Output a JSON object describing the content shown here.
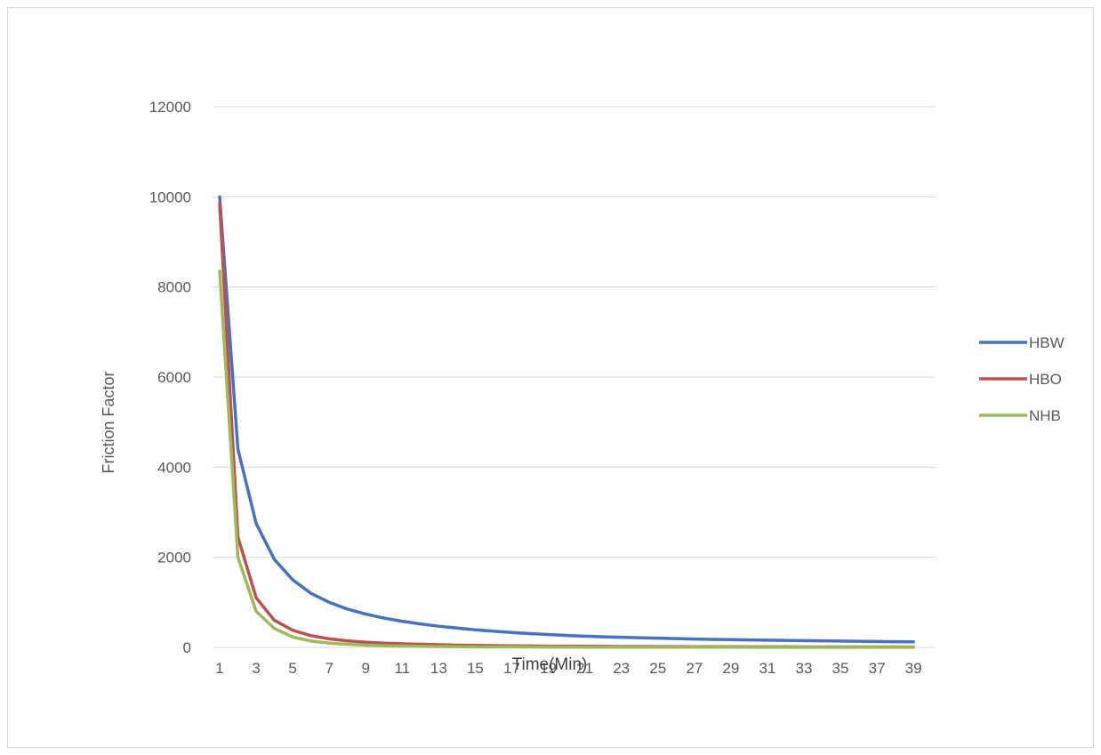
{
  "chart_data": {
    "type": "line",
    "title": "",
    "xlabel": "Time(Min)",
    "ylabel": "Friction Factor",
    "ylim": [
      0,
      12000
    ],
    "y_ticks": [
      0,
      2000,
      4000,
      6000,
      8000,
      10000,
      12000
    ],
    "y_tick_labels": [
      "0",
      "2000",
      "4000",
      "6000",
      "8000",
      "10000",
      "12000"
    ],
    "x": [
      1,
      2,
      3,
      4,
      5,
      6,
      7,
      8,
      9,
      10,
      11,
      12,
      13,
      14,
      15,
      16,
      17,
      18,
      19,
      20,
      21,
      22,
      23,
      24,
      25,
      26,
      27,
      28,
      29,
      30,
      31,
      32,
      33,
      34,
      35,
      36,
      37,
      38,
      39
    ],
    "x_tick_labels": [
      "1",
      "3",
      "5",
      "7",
      "9",
      "11",
      "13",
      "15",
      "17",
      "19",
      "21",
      "23",
      "25",
      "27",
      "29",
      "31",
      "33",
      "35",
      "37",
      "39"
    ],
    "grid": true,
    "legend_position": "right",
    "series": [
      {
        "name": "HBW",
        "color": "#4472c4",
        "values": [
          10000,
          4400,
          2750,
          1950,
          1500,
          1200,
          1000,
          850,
          740,
          650,
          580,
          520,
          470,
          430,
          390,
          360,
          330,
          305,
          285,
          265,
          250,
          235,
          225,
          215,
          205,
          195,
          185,
          178,
          172,
          165,
          160,
          155,
          150,
          145,
          140,
          135,
          130,
          127,
          124
        ]
      },
      {
        "name": "HBO",
        "color": "#c0504d",
        "values": [
          9850,
          2450,
          1100,
          600,
          380,
          260,
          190,
          145,
          115,
          95,
          80,
          68,
          58,
          50,
          44,
          39,
          35,
          31,
          28,
          26,
          24,
          22,
          20,
          19,
          18,
          17,
          16,
          15,
          14,
          13,
          12,
          12,
          11,
          11,
          10,
          10,
          9,
          9,
          9
        ]
      },
      {
        "name": "NHB",
        "color": "#9bbb59",
        "values": [
          8350,
          2000,
          800,
          420,
          230,
          140,
          95,
          68,
          50,
          38,
          30,
          24,
          20,
          16,
          13,
          11,
          10,
          9,
          8,
          7,
          6,
          6,
          5,
          5,
          5,
          4,
          4,
          4,
          4,
          3,
          3,
          3,
          3,
          3,
          3,
          3,
          3,
          3,
          3
        ]
      }
    ]
  }
}
